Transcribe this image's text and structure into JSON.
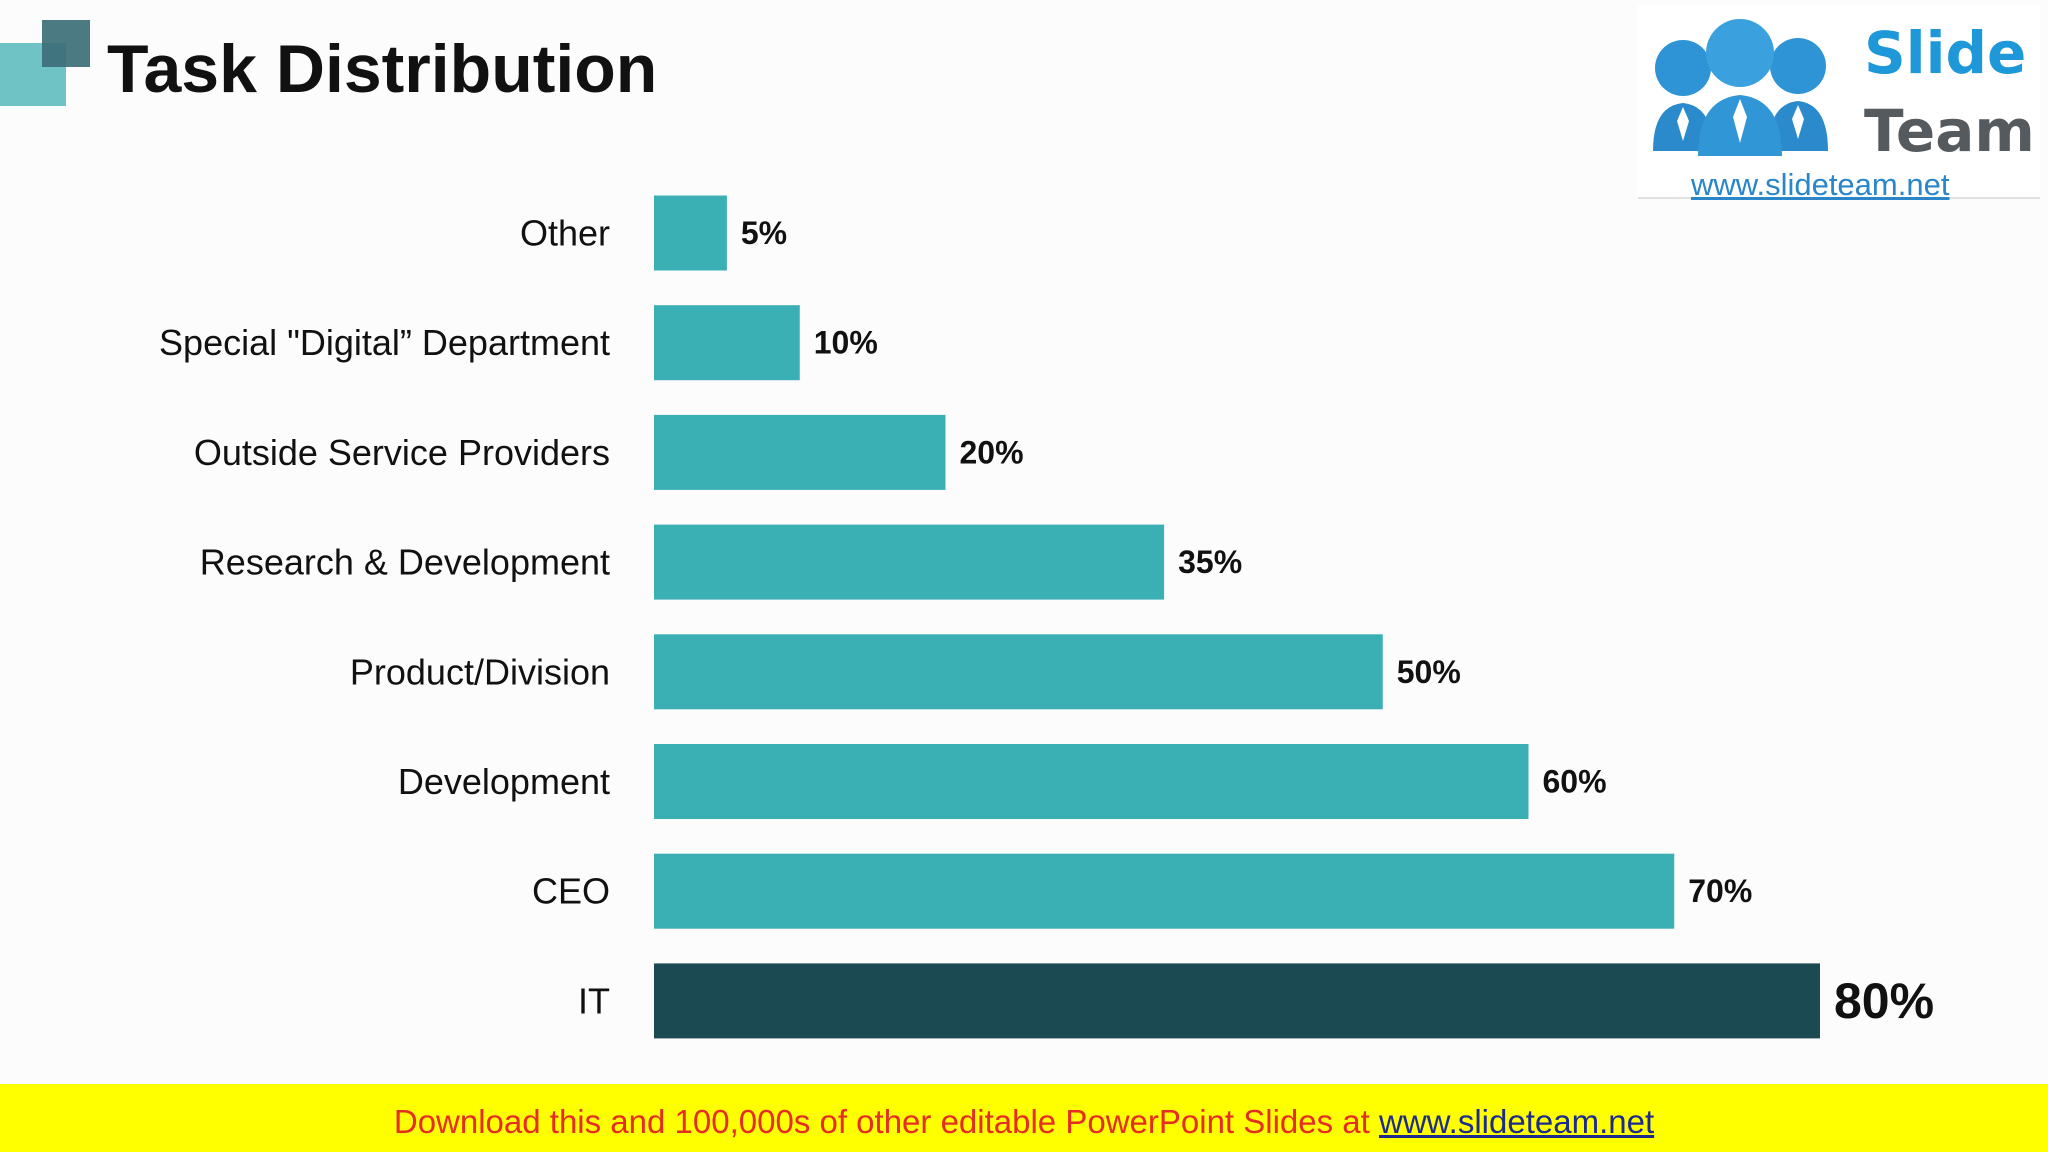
{
  "title": "Task Distribution",
  "logo": {
    "word1": "Slide",
    "word2": "Team",
    "url": "www.slideteam.net"
  },
  "footer": {
    "text": "Download this and 100,000s of other editable PowerPoint Slides at ",
    "link": "www.slideteam.net"
  },
  "colors": {
    "bar": "#3aafb4",
    "highlight_bar": "#1b4a52",
    "footer_bg": "#ffff00",
    "footer_text": "#e52d24"
  },
  "chart_data": {
    "type": "bar",
    "orientation": "horizontal",
    "title": "",
    "xlabel": "",
    "ylabel": "",
    "xlim": [
      0,
      80
    ],
    "grid": false,
    "categories": [
      "Other",
      "Special \"Digital” Department",
      "Outside Service Providers",
      "Research & Development",
      "Product/Division",
      "Development",
      "CEO",
      "IT"
    ],
    "values": [
      5,
      10,
      20,
      35,
      50,
      60,
      70,
      80
    ],
    "data_labels": [
      "5%",
      "10%",
      "20%",
      "35%",
      "50%",
      "60%",
      "70%",
      "80%"
    ],
    "highlighted_category": "IT"
  }
}
